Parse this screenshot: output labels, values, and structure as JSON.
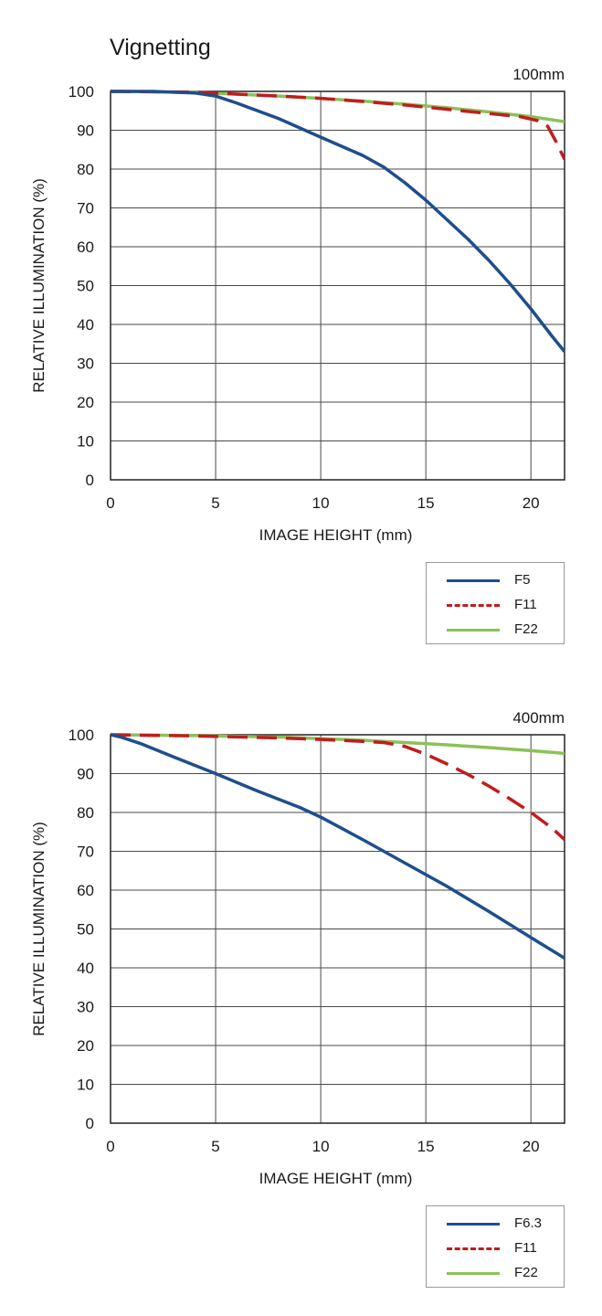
{
  "title": "Vignetting",
  "colors": {
    "blue": "#1f4e8c",
    "red": "#c01d1d",
    "green": "#8cc157",
    "grid": "#4a4a4a"
  },
  "chart_data": [
    {
      "type": "line",
      "corner_label": "100mm",
      "xlabel": "IMAGE HEIGHT (mm)",
      "ylabel": "RELATIVE ILLUMINATION (%)",
      "xlim": [
        0,
        21.6
      ],
      "ylim": [
        0,
        100
      ],
      "xticks": [
        0,
        5,
        10,
        15,
        20
      ],
      "yticks": [
        0,
        10,
        20,
        30,
        40,
        50,
        60,
        70,
        80,
        90,
        100
      ],
      "grid": true,
      "legend_position": "below-right",
      "series": [
        {
          "name": "F5",
          "color": "#1f4e8c",
          "dash": "solid",
          "points": [
            [
              0,
              100
            ],
            [
              2,
              100
            ],
            [
              4,
              99.6
            ],
            [
              5,
              98.8
            ],
            [
              6,
              97
            ],
            [
              8,
              93
            ],
            [
              10,
              88.2
            ],
            [
              12,
              83.5
            ],
            [
              13,
              80.5
            ],
            [
              14,
              76.5
            ],
            [
              15,
              72
            ],
            [
              16,
              67
            ],
            [
              17,
              62
            ],
            [
              18,
              56.5
            ],
            [
              19,
              50.5
            ],
            [
              20,
              44
            ],
            [
              21,
              37
            ],
            [
              21.6,
              33
            ]
          ]
        },
        {
          "name": "F11",
          "color": "#c01d1d",
          "dash": "dashed",
          "points": [
            [
              0,
              100
            ],
            [
              4,
              99.8
            ],
            [
              6,
              99.3
            ],
            [
              8,
              98.8
            ],
            [
              10,
              98.2
            ],
            [
              12,
              97.4
            ],
            [
              14,
              96.5
            ],
            [
              16,
              95.4
            ],
            [
              18,
              94.3
            ],
            [
              19.5,
              93.5
            ],
            [
              20.3,
              92.5
            ],
            [
              20.8,
              91
            ],
            [
              21.2,
              87
            ],
            [
              21.6,
              82.5
            ]
          ]
        },
        {
          "name": "F22",
          "color": "#8cc157",
          "dash": "solid",
          "points": [
            [
              0,
              100
            ],
            [
              2,
              99.9
            ],
            [
              4,
              99.7
            ],
            [
              6,
              99.3
            ],
            [
              8,
              98.8
            ],
            [
              10,
              98.2
            ],
            [
              12,
              97.5
            ],
            [
              14,
              96.7
            ],
            [
              16,
              95.8
            ],
            [
              18,
              94.7
            ],
            [
              20,
              93.5
            ],
            [
              21.6,
              92.2
            ]
          ]
        }
      ]
    },
    {
      "type": "line",
      "corner_label": "400mm",
      "xlabel": "IMAGE HEIGHT (mm)",
      "ylabel": "RELATIVE ILLUMINATION (%)",
      "xlim": [
        0,
        21.6
      ],
      "ylim": [
        0,
        100
      ],
      "xticks": [
        0,
        5,
        10,
        15,
        20
      ],
      "yticks": [
        0,
        10,
        20,
        30,
        40,
        50,
        60,
        70,
        80,
        90,
        100
      ],
      "grid": true,
      "legend_position": "below-right",
      "series": [
        {
          "name": "F6.3",
          "color": "#1f4e8c",
          "dash": "solid",
          "points": [
            [
              0,
              100
            ],
            [
              0.5,
              99.4
            ],
            [
              1.5,
              97.6
            ],
            [
              3,
              94.3
            ],
            [
              5,
              90
            ],
            [
              7,
              85.5
            ],
            [
              9,
              81.3
            ],
            [
              10,
              78.8
            ],
            [
              12,
              73
            ],
            [
              14,
              67
            ],
            [
              16,
              61
            ],
            [
              18,
              54.5
            ],
            [
              20,
              47.8
            ],
            [
              21.6,
              42.5
            ]
          ]
        },
        {
          "name": "F11",
          "color": "#c01d1d",
          "dash": "dashed",
          "points": [
            [
              0,
              100
            ],
            [
              4,
              99.7
            ],
            [
              8,
              99.2
            ],
            [
              10,
              98.8
            ],
            [
              12,
              98.3
            ],
            [
              13,
              98
            ],
            [
              14,
              97
            ],
            [
              15,
              95
            ],
            [
              16,
              92.5
            ],
            [
              17,
              89.8
            ],
            [
              18,
              86.8
            ],
            [
              19,
              83.5
            ],
            [
              20,
              80
            ],
            [
              21,
              76
            ],
            [
              21.6,
              73
            ]
          ]
        },
        {
          "name": "F22",
          "color": "#8cc157",
          "dash": "solid",
          "points": [
            [
              0,
              100
            ],
            [
              4,
              99.8
            ],
            [
              8,
              99.4
            ],
            [
              10,
              99
            ],
            [
              12,
              98.6
            ],
            [
              14,
              98
            ],
            [
              16,
              97.4
            ],
            [
              18,
              96.7
            ],
            [
              20,
              95.9
            ],
            [
              21.6,
              95.2
            ]
          ]
        }
      ]
    }
  ]
}
